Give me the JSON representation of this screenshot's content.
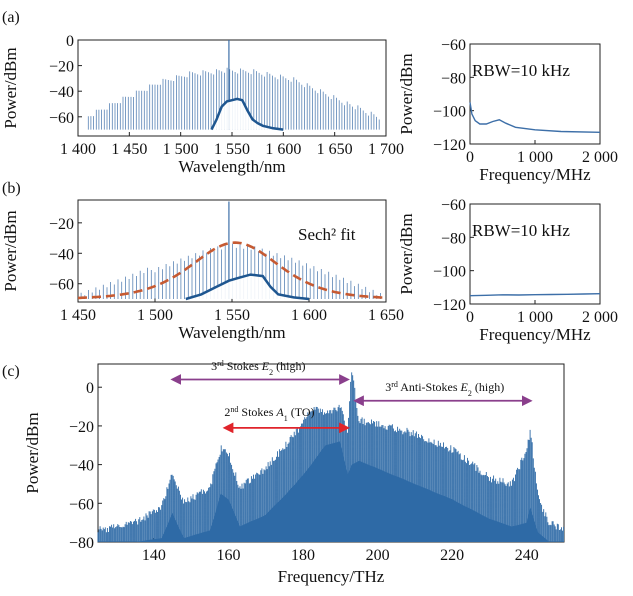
{
  "panels": {
    "a": "(a)",
    "b": "(b)",
    "c": "(c)"
  },
  "chart_data": [
    {
      "id": "a_left",
      "type": "line",
      "xlabel": "Wavelength/nm",
      "ylabel": "Power/dBm",
      "xlim": [
        1400,
        1700
      ],
      "ylim": [
        -75,
        0
      ],
      "xticks": [
        1400,
        1450,
        1500,
        1550,
        1600,
        1650,
        1700
      ],
      "xtick_labels": [
        "1 400",
        "1 450",
        "1 500",
        "1 550",
        "1 600",
        "1 650",
        "1 700"
      ],
      "yticks": [
        0,
        -20,
        -40,
        -60
      ],
      "ytick_labels": [
        "0",
        "−20",
        "−40",
        "−60"
      ],
      "color": "#3d6fa8",
      "comb": {
        "x_start": 1410,
        "x_end": 1695,
        "spacing": 2.6,
        "base": -70,
        "envelope_x": [
          1410,
          1440,
          1480,
          1510,
          1540,
          1570,
          1610,
          1650,
          1695
        ],
        "envelope_y": [
          -60,
          -48,
          -33,
          -26,
          -24,
          -25,
          -31,
          -45,
          -62
        ],
        "peak_x": 1547,
        "peak_y": 0
      },
      "inner_x": [
        1530,
        1535,
        1540,
        1545,
        1550,
        1555,
        1560,
        1565,
        1570,
        1575,
        1580,
        1590,
        1600
      ],
      "inner_y": [
        -70,
        -62,
        -52,
        -48,
        -47,
        -46,
        -47,
        -55,
        -62,
        -65,
        -67,
        -69,
        -70
      ]
    },
    {
      "id": "a_right",
      "type": "line",
      "xlabel": "Frequency/MHz",
      "ylabel": "Power/dBm",
      "xlim": [
        0,
        2000
      ],
      "ylim": [
        -120,
        -60
      ],
      "xticks": [
        0,
        1000,
        2000
      ],
      "xtick_labels": [
        "0",
        "1 000",
        "2 000"
      ],
      "yticks": [
        -60,
        -80,
        -100,
        -120
      ],
      "ytick_labels": [
        "−60",
        "−80",
        "−100",
        "−120"
      ],
      "annotation": "RBW=10 kHz",
      "color": "#3d6fa8",
      "x": [
        0,
        30,
        80,
        150,
        250,
        350,
        450,
        550,
        700,
        1000,
        1400,
        2000
      ],
      "y": [
        -95,
        -102,
        -106,
        -108,
        -108,
        -106.5,
        -105.5,
        -107.5,
        -110,
        -111.5,
        -112.5,
        -113
      ]
    },
    {
      "id": "b_left",
      "type": "line",
      "xlabel": "Wavelength/nm",
      "ylabel": "Power/dBm",
      "xlim": [
        1450,
        1650
      ],
      "ylim": [
        -72,
        -5
      ],
      "xticks": [
        1450,
        1500,
        1550,
        1600,
        1650
      ],
      "xtick_labels": [
        "1 450",
        "1 500",
        "1 550",
        "1 600",
        "1 650"
      ],
      "yticks": [
        -20,
        -40,
        -60
      ],
      "ytick_labels": [
        "−20",
        "−40",
        "−60"
      ],
      "annotation": "Sech² fit",
      "color": "#3d6fa8",
      "fit_color": "#c65a32",
      "comb": {
        "x_start": 1452,
        "x_end": 1648,
        "spacing": 2.4,
        "base": -70,
        "envelope_x": [
          1452,
          1480,
          1510,
          1535,
          1550,
          1565,
          1590,
          1620,
          1648
        ],
        "envelope_y": [
          -68,
          -58,
          -46,
          -37,
          -34,
          -36,
          -44,
          -56,
          -68
        ],
        "peak_x": 1548,
        "peak_y": -6
      },
      "inner_x": [
        1520,
        1530,
        1540,
        1548,
        1555,
        1562,
        1570,
        1575,
        1580,
        1590,
        1600
      ],
      "inner_y": [
        -70,
        -67,
        -62,
        -58,
        -56,
        -54,
        -55,
        -62,
        -67,
        -69,
        -70
      ],
      "fit": {
        "center": 1552,
        "peak": -33,
        "floor": -70,
        "width": 38
      }
    },
    {
      "id": "b_right",
      "type": "line",
      "xlabel": "Frequency/MHz",
      "ylabel": "Power/dBm",
      "xlim": [
        0,
        2000
      ],
      "ylim": [
        -120,
        -60
      ],
      "xticks": [
        0,
        1000,
        2000
      ],
      "xtick_labels": [
        "0",
        "1 000",
        "2 000"
      ],
      "yticks": [
        -60,
        -80,
        -100,
        -120
      ],
      "ytick_labels": [
        "−60",
        "−80",
        "−100",
        "−120"
      ],
      "annotation": "RBW=10 kHz",
      "color": "#3d6fa8",
      "x": [
        0,
        250,
        500,
        750,
        1000,
        1250,
        1500,
        1750,
        2000
      ],
      "y": [
        -115,
        -114.8,
        -114.5,
        -114.6,
        -114.4,
        -114.3,
        -114.2,
        -114,
        -113.8
      ]
    },
    {
      "id": "c",
      "type": "line",
      "xlabel": "Frequency/THz",
      "ylabel": "Power/dBm",
      "xlim": [
        125,
        250
      ],
      "ylim": [
        -80,
        12
      ],
      "xticks": [
        140,
        160,
        180,
        200,
        220,
        240
      ],
      "xtick_labels": [
        "140",
        "160",
        "180",
        "200",
        "220",
        "240"
      ],
      "yticks": [
        0,
        -20,
        -40,
        -60,
        -80
      ],
      "ytick_labels": [
        "0",
        "−20",
        "−40",
        "−60",
        "−80"
      ],
      "color": "#2e6aa6",
      "envelope_x": [
        125,
        135,
        142,
        145,
        148,
        155,
        158,
        160,
        163,
        170,
        178,
        183,
        186,
        190,
        192,
        193,
        195,
        200,
        210,
        220,
        230,
        236,
        240,
        241,
        243,
        246,
        250
      ],
      "envelope_y": [
        -72,
        -68,
        -60,
        -42,
        -58,
        -50,
        -30,
        -32,
        -50,
        -40,
        -22,
        -8,
        -12,
        -8,
        -20,
        12,
        -15,
        -17,
        -22,
        -30,
        -45,
        -48,
        -30,
        -20,
        -55,
        -68,
        -72
      ],
      "floor_y": [
        -80,
        -80,
        -78,
        -65,
        -78,
        -74,
        -55,
        -58,
        -72,
        -66,
        -50,
        -38,
        -30,
        -28,
        -45,
        -40,
        -38,
        -42,
        -50,
        -58,
        -68,
        -72,
        -70,
        -62,
        -75,
        -80,
        -80
      ],
      "annotations": [
        {
          "prefix": "3",
          "sup": "rd",
          "text": " Stokes ",
          "var": "E",
          "sub": "2",
          "suffix": " (high)",
          "arrow_from": 145,
          "arrow_to": 192,
          "arrow_y": 4,
          "label_x": 168,
          "label_y": 9,
          "color": "#8a3f8c"
        },
        {
          "prefix": "2",
          "sup": "nd",
          "text": " Stokes ",
          "var": "A",
          "sub": "1",
          "suffix": " (TO)",
          "arrow_from": 159,
          "arrow_to": 192,
          "arrow_y": -21,
          "label_x": 171,
          "label_y": -15,
          "color": "#e0242b"
        },
        {
          "prefix": "3",
          "sup": "rd",
          "text": " Anti-Stokes ",
          "var": "E",
          "sub": "2",
          "suffix": " (high)",
          "arrow_from": 194,
          "arrow_to": 241,
          "arrow_y": -7,
          "label_x": 218,
          "label_y": -2,
          "color": "#8a3f8c"
        }
      ]
    }
  ]
}
